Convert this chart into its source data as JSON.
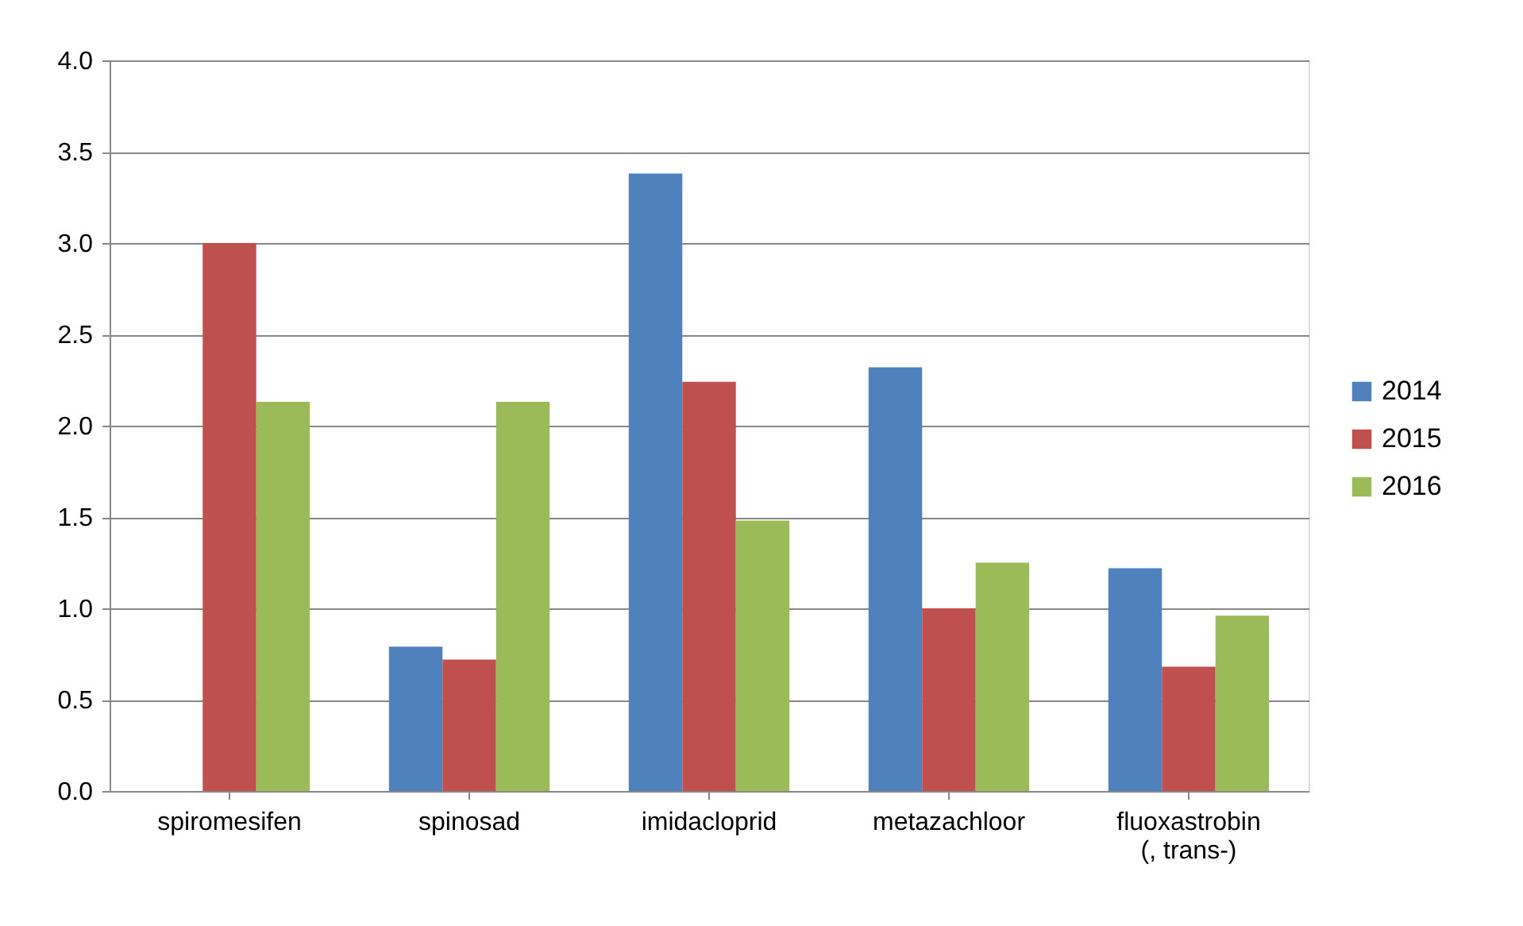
{
  "chart_data": {
    "type": "bar",
    "categories": [
      "spiromesifen",
      "spinosad",
      "imidacloprid",
      "metazachloor",
      "fluoxastrobin\n(, trans-)"
    ],
    "series": [
      {
        "name": "2014",
        "color": "#4f81bd",
        "values": [
          null,
          0.79,
          3.38,
          2.32,
          1.22
        ]
      },
      {
        "name": "2015",
        "color": "#c0504d",
        "values": [
          3.0,
          0.72,
          2.24,
          1.0,
          0.68
        ]
      },
      {
        "name": "2016",
        "color": "#9bbb59",
        "values": [
          2.13,
          2.13,
          1.48,
          1.25,
          0.96
        ]
      }
    ],
    "ylim": [
      0,
      4.0
    ],
    "yticks": [
      {
        "value": 0,
        "label": "0.0"
      },
      {
        "value": 0.5,
        "label": "0.5"
      },
      {
        "value": 1,
        "label": "1.0"
      },
      {
        "value": 1.5,
        "label": "1.5"
      },
      {
        "value": 2,
        "label": "2.0"
      },
      {
        "value": 2.5,
        "label": "2.5"
      },
      {
        "value": 3,
        "label": "3.0"
      },
      {
        "value": 3.5,
        "label": "3.5"
      },
      {
        "value": 4,
        "label": "4.0"
      }
    ],
    "grid": "y",
    "legend": "right"
  }
}
